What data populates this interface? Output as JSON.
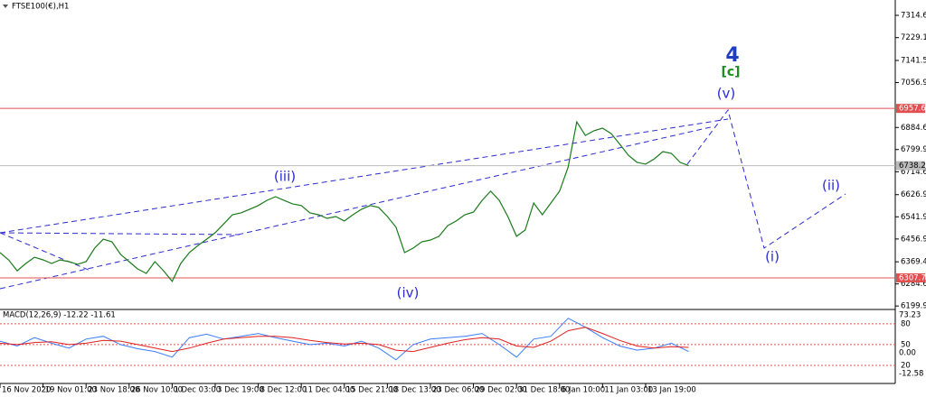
{
  "chart_data": [
    {
      "type": "line",
      "title": "FTSE100(€),H1",
      "color": "#1a7a1a",
      "x": [
        0,
        1,
        2,
        3,
        4,
        5,
        6,
        7,
        8,
        9,
        10,
        11,
        12,
        13,
        14,
        15,
        16,
        17,
        18,
        19,
        20,
        21,
        22,
        23,
        24,
        25,
        26,
        27,
        28,
        29,
        30,
        31,
        32,
        33,
        34,
        35,
        36,
        37,
        38,
        39,
        40,
        41,
        42,
        43,
        44,
        45,
        46,
        47,
        48,
        49,
        50,
        51,
        52,
        53,
        54,
        55,
        56,
        57,
        58,
        59,
        60,
        61,
        62,
        63,
        64,
        65,
        66,
        67,
        68,
        69,
        70,
        71,
        72,
        73,
        74,
        75,
        76,
        77,
        78,
        79,
        80
      ],
      "values": [
        6405,
        6377,
        6335,
        6363,
        6387,
        6377,
        6363,
        6377,
        6370,
        6360,
        6370,
        6422,
        6456,
        6446,
        6398,
        6370,
        6342,
        6325,
        6370,
        6335,
        6294,
        6363,
        6405,
        6432,
        6456,
        6481,
        6515,
        6550,
        6557,
        6571,
        6585,
        6605,
        6619,
        6605,
        6591,
        6585,
        6557,
        6550,
        6536,
        6543,
        6526,
        6550,
        6571,
        6585,
        6578,
        6543,
        6502,
        6405,
        6422,
        6446,
        6453,
        6467,
        6508,
        6526,
        6550,
        6560,
        6605,
        6640,
        6605,
        6543,
        6467,
        6491,
        6595,
        6550,
        6595,
        6640,
        6733,
        6906,
        6854,
        6872,
        6882,
        6861,
        6820,
        6778,
        6751,
        6744,
        6764,
        6792,
        6785,
        6751,
        6738.2
      ],
      "xlim": [
        0,
        104
      ],
      "ylim": [
        6190,
        7363
      ],
      "yticks": [
        7314.6,
        7229.1,
        7141.5,
        7056.9,
        6884.6,
        6799.9,
        6714.6,
        6626.9,
        6541.9,
        6456.9,
        6369.4,
        6284.6,
        6199.9
      ],
      "xticks": [
        {
          "value": 0,
          "label": "16 Nov 2020"
        },
        {
          "value": 5,
          "label": "19 Nov 01:00"
        },
        {
          "value": 10,
          "label": "23 Nov 18:00"
        },
        {
          "value": 15,
          "label": "26 Nov 10:00"
        },
        {
          "value": 20,
          "label": "1 Dec 03:00"
        },
        {
          "value": 25,
          "label": "3 Dec 19:00"
        },
        {
          "value": 30,
          "label": "8 Dec 12:00"
        },
        {
          "value": 35,
          "label": "11 Dec 04:00"
        },
        {
          "value": 40,
          "label": "15 Dec 21:00"
        },
        {
          "value": 45,
          "label": "18 Dec 13:00"
        },
        {
          "value": 50,
          "label": "23 Dec 06:00"
        },
        {
          "value": 55,
          "label": "29 Dec 02:00"
        },
        {
          "value": 60,
          "label": "31 Dec 18:00"
        },
        {
          "value": 65,
          "label": "6 Jan 10:00"
        },
        {
          "value": 70,
          "label": "11 Jan 03:00"
        },
        {
          "value": 75,
          "label": "13 Jan 19:00"
        }
      ],
      "levels": [
        {
          "value": 6957.6,
          "color": "#e05050"
        },
        {
          "value": 6307.7,
          "color": "#e05050"
        }
      ],
      "current_price": {
        "value": 6738.2,
        "color": "#bbbbbb"
      },
      "annotations": [
        {
          "text": "4",
          "color": "#1f3fc0"
        },
        {
          "text": "[c]",
          "color": "#1e8c1e"
        },
        {
          "text": "(v)",
          "color": "#2a2ad0"
        },
        {
          "text": "(iii)",
          "color": "#2a2ad0"
        },
        {
          "text": "(iv)",
          "color": "#2a2ad0"
        },
        {
          "text": "(i)",
          "color": "#2a2ad0"
        },
        {
          "text": "(ii)",
          "color": "#2a2ad0"
        }
      ]
    },
    {
      "type": "line",
      "title": "MACD(12,26,9) -12.22 -11.61",
      "x": [
        0,
        2,
        4,
        6,
        8,
        10,
        12,
        14,
        16,
        18,
        20,
        22,
        24,
        26,
        28,
        30,
        32,
        34,
        36,
        38,
        40,
        42,
        44,
        46,
        48,
        50,
        52,
        54,
        56,
        58,
        60,
        62,
        64,
        66,
        68,
        70,
        72,
        74,
        76,
        78,
        80
      ],
      "series": [
        {
          "color": "#3a7bff",
          "values": [
            55,
            48,
            60,
            52,
            45,
            58,
            62,
            50,
            44,
            40,
            32,
            60,
            65,
            58,
            62,
            66,
            60,
            55,
            50,
            52,
            48,
            55,
            45,
            28,
            50,
            58,
            60,
            62,
            66,
            50,
            32,
            58,
            62,
            88,
            75,
            60,
            48,
            42,
            45,
            52,
            40
          ]
        },
        {
          "color": "#e02020",
          "values": [
            52,
            50,
            53,
            54,
            50,
            52,
            56,
            55,
            50,
            45,
            40,
            45,
            52,
            58,
            60,
            62,
            62,
            60,
            56,
            53,
            51,
            52,
            50,
            42,
            40,
            46,
            52,
            57,
            60,
            58,
            48,
            46,
            55,
            70,
            75,
            66,
            56,
            48,
            45,
            47,
            46
          ]
        }
      ],
      "xlim": [
        0,
        104
      ],
      "ylim": [
        -6,
        98
      ],
      "yticks": [
        80,
        50,
        20
      ],
      "labels": [
        "73.23",
        "0.00",
        "-12.58"
      ]
    }
  ]
}
